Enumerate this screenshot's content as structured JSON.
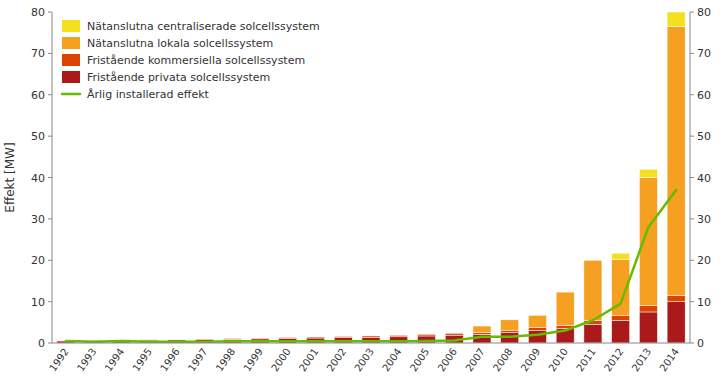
{
  "chart_data": {
    "type": "bar",
    "stacked": true,
    "ylabel": "Effekt [MW]",
    "categories": [
      "1992",
      "1993",
      "1994",
      "1995",
      "1996",
      "1997",
      "1998",
      "1999",
      "2000",
      "2001",
      "2002",
      "2003",
      "2004",
      "2005",
      "2006",
      "2007",
      "2008",
      "2009",
      "2010",
      "2011",
      "2012",
      "2013",
      "2014"
    ],
    "series": [
      {
        "name": "Fristående privata solcellssystem",
        "type": "bar",
        "color": "#aa1a1a",
        "values": [
          0.5,
          0.55,
          0.65,
          0.7,
          0.75,
          0.8,
          0.9,
          1.0,
          1.1,
          1.2,
          1.3,
          1.4,
          1.5,
          1.7,
          1.9,
          2.1,
          2.5,
          3.0,
          3.5,
          4.5,
          5.5,
          7.5,
          10.0
        ]
      },
      {
        "name": "Fristående kommersiella solcellssystem",
        "type": "bar",
        "color": "#dd4400",
        "values": [
          0.05,
          0.05,
          0.08,
          0.1,
          0.12,
          0.15,
          0.18,
          0.2,
          0.22,
          0.25,
          0.28,
          0.3,
          0.35,
          0.4,
          0.45,
          0.5,
          0.6,
          0.7,
          0.8,
          1.0,
          1.2,
          1.5,
          1.5
        ]
      },
      {
        "name": "Nätanslutna lokala solcellssystem",
        "type": "bar",
        "color": "#f5a020",
        "values": [
          0.0,
          0.0,
          0.0,
          0.0,
          0.0,
          0.0,
          0.0,
          0.0,
          0.0,
          0.0,
          0.0,
          0.0,
          0.0,
          0.0,
          0.0,
          1.5,
          2.5,
          3.0,
          8.0,
          14.5,
          13.5,
          31.0,
          65.0
        ]
      },
      {
        "name": "Nätanslutna centraliserade solcellssystem",
        "type": "bar",
        "color": "#f5e020",
        "values": [
          0.0,
          0.0,
          0.0,
          0.0,
          0.0,
          0.0,
          0.0,
          0.0,
          0.0,
          0.0,
          0.0,
          0.0,
          0.0,
          0.0,
          0.0,
          0.0,
          0.0,
          0.0,
          0.0,
          0.0,
          1.5,
          2.0,
          3.5
        ]
      },
      {
        "name": "Årlig installerad effekt",
        "type": "line",
        "color": "#66bb00",
        "values": [
          0.5,
          0.3,
          0.5,
          0.3,
          0.3,
          0.3,
          0.4,
          0.4,
          0.4,
          0.4,
          0.4,
          0.4,
          0.4,
          0.5,
          0.6,
          1.5,
          1.5,
          2.0,
          3.0,
          5.5,
          9.5,
          28.0,
          37.0
        ]
      }
    ],
    "ylim": [
      0,
      80
    ],
    "yticks": [
      0,
      10,
      20,
      30,
      40,
      50,
      60,
      70,
      80
    ],
    "y2lim": [
      0,
      80
    ],
    "y2ticks": [
      0,
      10,
      20,
      30,
      40,
      50,
      60,
      70,
      80
    ],
    "grid": false,
    "legend": "upper left"
  }
}
